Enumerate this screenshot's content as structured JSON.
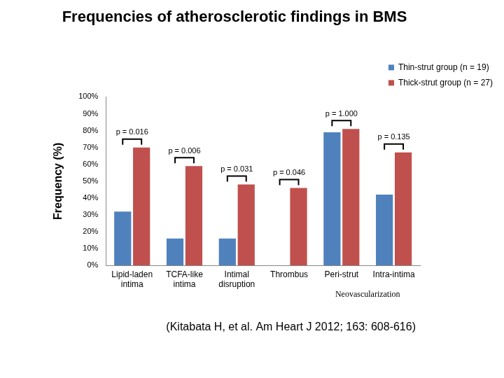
{
  "chart_data": {
    "type": "bar",
    "title": "Frequencies of atherosclerotic findings in BMS",
    "y_label": "Frequency (%)",
    "categories": [
      "Lipid-laden intima",
      "TCFA-like intima",
      "Intimal disruption",
      "Thrombus",
      "Peri-strut",
      "Intra-intima"
    ],
    "series": [
      {
        "name": "Thin-strut group (n = 19)",
        "color": "#4f81bd",
        "values": [
          32,
          16,
          16,
          0,
          79,
          42
        ]
      },
      {
        "name": "Thick-strut group (n = 27)",
        "color": "#c0504d",
        "values": [
          70,
          59,
          48,
          46,
          81,
          67
        ]
      }
    ],
    "ylim": [
      0,
      100
    ],
    "yticks": [
      {
        "value": 0,
        "label": "0%"
      },
      {
        "value": 10,
        "label": "10%"
      },
      {
        "value": 20,
        "label": "20%"
      },
      {
        "value": 30,
        "label": "30%"
      },
      {
        "value": 40,
        "label": "40%"
      },
      {
        "value": 50,
        "label": "50%"
      },
      {
        "value": 60,
        "label": "60%"
      },
      {
        "value": 70,
        "label": "70%"
      },
      {
        "value": 80,
        "label": "80%"
      },
      {
        "value": 90,
        "label": "90%"
      },
      {
        "value": 100,
        "label": "100%"
      }
    ],
    "grid": false,
    "legend": "top-right",
    "annotations": [
      {
        "category": "Lipid-laden intima",
        "text": "p = 0.016"
      },
      {
        "category": "TCFA-like intima",
        "text": "p = 0.006"
      },
      {
        "category": "Intimal disruption",
        "text": "p = 0.031"
      },
      {
        "category": "Thrombus",
        "text": "p = 0.046"
      },
      {
        "category": "Peri-strut",
        "text": "p = 1.000"
      },
      {
        "category": "Intra-intima",
        "text": "p = 0.135"
      }
    ],
    "group_label": {
      "text": "Neovascularization",
      "categories": [
        "Peri-strut",
        "Intra-intima"
      ]
    },
    "source": "(Kitabata H, et al. Am Heart J 2012; 163: 608-616)"
  }
}
